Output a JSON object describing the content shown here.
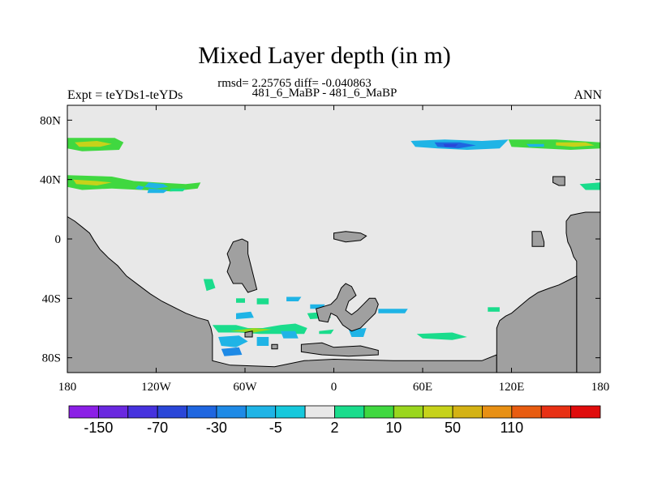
{
  "title": "Mixed Layer depth (in m)",
  "subtitle_stats": "rmsd= 2.25765 diff= -0.040863",
  "subtitle_case": "481_6_MaBP - 481_6_MaBP",
  "left_label": "Expt = teYDs1-teYDs",
  "right_label": "ANN",
  "map": {
    "lon_range": [
      -180,
      180
    ],
    "lat_range": [
      -90,
      90
    ],
    "lon_ticks": [
      {
        "value": -180,
        "label": "180"
      },
      {
        "value": -120,
        "label": "120W"
      },
      {
        "value": -60,
        "label": "60W"
      },
      {
        "value": 0,
        "label": "0"
      },
      {
        "value": 60,
        "label": "60E"
      },
      {
        "value": 120,
        "label": "120E"
      },
      {
        "value": 180,
        "label": "180"
      }
    ],
    "lat_ticks": [
      {
        "value": 80,
        "label": "80N"
      },
      {
        "value": 40,
        "label": "40N"
      },
      {
        "value": 0,
        "label": "0"
      },
      {
        "value": -40,
        "label": "40S"
      },
      {
        "value": -80,
        "label": "80S"
      }
    ],
    "ocean_color": "#e8e8e8",
    "land_color": "#a0a0a0"
  },
  "colorbar": {
    "colors": [
      "#8b1fe6",
      "#6a28e0",
      "#4632de",
      "#2a46d8",
      "#1f66e0",
      "#1e8ae6",
      "#1fb4e6",
      "#16c8dc",
      "#e8e8e8",
      "#1adc8c",
      "#40d840",
      "#9ad61e",
      "#c6d21a",
      "#d4b214",
      "#e89014",
      "#e85c10",
      "#e83014",
      "#e00c0c"
    ],
    "labels": [
      "-150",
      "-70",
      "-30",
      "-5",
      "2",
      "10",
      "50",
      "110"
    ]
  },
  "land": [
    [
      [
        -180,
        -90
      ],
      [
        -180,
        15
      ],
      [
        -175,
        12
      ],
      [
        -170,
        8
      ],
      [
        -165,
        4
      ],
      [
        -162,
        -1
      ],
      [
        -158,
        -7
      ],
      [
        -152,
        -13
      ],
      [
        -146,
        -18
      ],
      [
        -140,
        -25
      ],
      [
        -132,
        -31
      ],
      [
        -124,
        -37
      ],
      [
        -116,
        -42
      ],
      [
        -108,
        -46
      ],
      [
        -100,
        -50
      ],
      [
        -92,
        -53
      ],
      [
        -85,
        -55
      ],
      [
        -83,
        -60
      ],
      [
        -82,
        -65
      ],
      [
        -82,
        -82
      ],
      [
        -70,
        -85
      ],
      [
        -40,
        -86
      ],
      [
        -20,
        -82
      ],
      [
        0,
        -81
      ],
      [
        40,
        -82
      ],
      [
        80,
        -82
      ],
      [
        100,
        -82
      ],
      [
        110,
        -78
      ],
      [
        110,
        -90
      ]
    ],
    [
      [
        -72,
        -10
      ],
      [
        -68,
        -2
      ],
      [
        -62,
        0
      ],
      [
        -58,
        -2
      ],
      [
        -58,
        -10
      ],
      [
        -55,
        -22
      ],
      [
        -52,
        -34
      ],
      [
        -58,
        -36
      ],
      [
        -62,
        -30
      ],
      [
        -68,
        -30
      ],
      [
        -72,
        -22
      ],
      [
        -70,
        -16
      ]
    ],
    [
      [
        5,
        -33
      ],
      [
        8,
        -30
      ],
      [
        12,
        -32
      ],
      [
        15,
        -38
      ],
      [
        10,
        -42
      ],
      [
        8,
        -48
      ],
      [
        12,
        -51
      ],
      [
        16,
        -48
      ],
      [
        20,
        -44
      ],
      [
        24,
        -40
      ],
      [
        28,
        -40
      ],
      [
        30,
        -44
      ],
      [
        28,
        -50
      ],
      [
        22,
        -56
      ],
      [
        18,
        -60
      ],
      [
        12,
        -62
      ],
      [
        6,
        -58
      ],
      [
        2,
        -52
      ],
      [
        -2,
        -50
      ],
      [
        -4,
        -56
      ],
      [
        -10,
        -55
      ],
      [
        -12,
        -47
      ],
      [
        -2,
        -44
      ],
      [
        2,
        -40
      ]
    ],
    [
      [
        -22,
        -71
      ],
      [
        -8,
        -70
      ],
      [
        0,
        -73
      ],
      [
        18,
        -72
      ],
      [
        30,
        -75
      ],
      [
        30,
        -78
      ],
      [
        10,
        -79
      ],
      [
        -8,
        -78
      ],
      [
        -22,
        -76
      ]
    ],
    [
      [
        0,
        4
      ],
      [
        8,
        5
      ],
      [
        18,
        4
      ],
      [
        22,
        2
      ],
      [
        18,
        -1
      ],
      [
        8,
        -2
      ],
      [
        0,
        0
      ]
    ],
    [
      [
        -60,
        -63
      ],
      [
        -55,
        -62
      ],
      [
        -55,
        -66
      ],
      [
        -60,
        -66
      ]
    ],
    [
      [
        -42,
        -71
      ],
      [
        -38,
        -71
      ],
      [
        -38,
        -74
      ],
      [
        -42,
        -74
      ]
    ],
    [
      [
        134,
        5
      ],
      [
        140,
        5
      ],
      [
        142,
        -2
      ],
      [
        142,
        -5
      ],
      [
        134,
        -5
      ]
    ],
    [
      [
        148,
        42
      ],
      [
        156,
        42
      ],
      [
        156,
        36
      ],
      [
        152,
        36
      ],
      [
        148,
        38
      ]
    ],
    [
      [
        164,
        -90
      ],
      [
        164,
        -15
      ],
      [
        162,
        -12
      ],
      [
        160,
        -6
      ],
      [
        158,
        -2
      ],
      [
        157,
        4
      ],
      [
        157,
        12
      ],
      [
        160,
        16
      ],
      [
        165,
        17
      ],
      [
        170,
        18
      ],
      [
        175,
        18
      ],
      [
        180,
        18
      ],
      [
        180,
        -90
      ]
    ],
    [
      [
        110,
        -90
      ],
      [
        110,
        -60
      ],
      [
        112,
        -55
      ],
      [
        116,
        -52
      ],
      [
        120,
        -50
      ],
      [
        126,
        -45
      ],
      [
        132,
        -40
      ],
      [
        138,
        -36
      ],
      [
        146,
        -33
      ],
      [
        152,
        -31
      ],
      [
        160,
        -27
      ],
      [
        164,
        -25
      ],
      [
        164,
        -90
      ]
    ]
  ],
  "patches": [
    {
      "color": "#40d840",
      "points": [
        [
          -180,
          68
        ],
        [
          -148,
          68
        ],
        [
          -142,
          65
        ],
        [
          -145,
          60
        ],
        [
          -170,
          59
        ],
        [
          -180,
          61
        ]
      ]
    },
    {
      "color": "#c6d21a",
      "points": [
        [
          -175,
          65
        ],
        [
          -160,
          66
        ],
        [
          -150,
          64
        ],
        [
          -158,
          62
        ],
        [
          -172,
          62
        ]
      ]
    },
    {
      "color": "#40d840",
      "points": [
        [
          -180,
          43
        ],
        [
          -150,
          42
        ],
        [
          -135,
          39
        ],
        [
          -120,
          38
        ],
        [
          -100,
          37
        ],
        [
          -90,
          38
        ],
        [
          -92,
          34
        ],
        [
          -110,
          32
        ],
        [
          -130,
          33
        ],
        [
          -150,
          34
        ],
        [
          -170,
          33
        ],
        [
          -180,
          35
        ]
      ]
    },
    {
      "color": "#c6d21a",
      "points": [
        [
          -176,
          40
        ],
        [
          -160,
          39
        ],
        [
          -150,
          38
        ],
        [
          -160,
          36
        ],
        [
          -174,
          37
        ]
      ]
    },
    {
      "color": "#1fb4e6",
      "points": [
        [
          -125,
          38
        ],
        [
          -115,
          37
        ],
        [
          -112,
          35
        ],
        [
          -120,
          34
        ],
        [
          -128,
          35
        ]
      ]
    },
    {
      "color": "#1fb4e6",
      "points": [
        [
          -125,
          34
        ],
        [
          -112,
          33
        ],
        [
          -115,
          31
        ],
        [
          -126,
          31
        ]
      ]
    },
    {
      "color": "#1fb4e6",
      "points": [
        [
          -132,
          36
        ],
        [
          -128,
          35
        ],
        [
          -130,
          33
        ],
        [
          -134,
          34
        ]
      ]
    },
    {
      "color": "#1adc8c",
      "points": [
        [
          -110,
          34
        ],
        [
          -100,
          34
        ],
        [
          -102,
          32
        ],
        [
          -111,
          32
        ]
      ]
    },
    {
      "color": "#1fb4e6",
      "points": [
        [
          52,
          66
        ],
        [
          75,
          67
        ],
        [
          100,
          66
        ],
        [
          118,
          67
        ],
        [
          112,
          61
        ],
        [
          90,
          60
        ],
        [
          70,
          61
        ],
        [
          55,
          62
        ]
      ]
    },
    {
      "color": "#1f66e0",
      "points": [
        [
          68,
          65
        ],
        [
          85,
          65
        ],
        [
          96,
          63
        ],
        [
          84,
          61
        ],
        [
          70,
          62
        ]
      ]
    },
    {
      "color": "#2a46d8",
      "points": [
        [
          74,
          64
        ],
        [
          84,
          64
        ],
        [
          82,
          62
        ],
        [
          75,
          62
        ]
      ]
    },
    {
      "color": "#40d840",
      "points": [
        [
          118,
          67
        ],
        [
          150,
          67
        ],
        [
          180,
          65
        ],
        [
          180,
          61
        ],
        [
          160,
          60
        ],
        [
          140,
          61
        ],
        [
          120,
          62
        ]
      ]
    },
    {
      "color": "#c6d21a",
      "points": [
        [
          150,
          65
        ],
        [
          170,
          65
        ],
        [
          176,
          63
        ],
        [
          162,
          62
        ],
        [
          150,
          63
        ]
      ]
    },
    {
      "color": "#1fb4e6",
      "points": [
        [
          130,
          64
        ],
        [
          142,
          64
        ],
        [
          142,
          62
        ],
        [
          132,
          62
        ]
      ]
    },
    {
      "color": "#1adc8c",
      "points": [
        [
          166,
          37
        ],
        [
          180,
          38
        ],
        [
          180,
          33
        ],
        [
          170,
          33
        ]
      ]
    },
    {
      "color": "#1adc8c",
      "points": [
        [
          -88,
          -27
        ],
        [
          -82,
          -27
        ],
        [
          -80,
          -33
        ],
        [
          -86,
          -35
        ]
      ]
    },
    {
      "color": "#1adc8c",
      "points": [
        [
          -52,
          -40
        ],
        [
          -44,
          -40
        ],
        [
          -44,
          -44
        ],
        [
          -52,
          -44
        ]
      ]
    },
    {
      "color": "#1fb4e6",
      "points": [
        [
          -66,
          -50
        ],
        [
          -56,
          -49
        ],
        [
          -54,
          -53
        ],
        [
          -66,
          -54
        ]
      ]
    },
    {
      "color": "#1adc8c",
      "points": [
        [
          -82,
          -58
        ],
        [
          -66,
          -58
        ],
        [
          -58,
          -60
        ],
        [
          -48,
          -60
        ],
        [
          -36,
          -58
        ],
        [
          -26,
          -57
        ],
        [
          -18,
          -60
        ],
        [
          -20,
          -64
        ],
        [
          -34,
          -64
        ],
        [
          -50,
          -64
        ],
        [
          -64,
          -63
        ],
        [
          -78,
          -63
        ]
      ]
    },
    {
      "color": "#9ad61e",
      "points": [
        [
          -70,
          -62
        ],
        [
          -54,
          -60
        ],
        [
          -42,
          -61
        ],
        [
          -54,
          -63
        ]
      ]
    },
    {
      "color": "#1fb4e6",
      "points": [
        [
          -78,
          -66
        ],
        [
          -64,
          -65
        ],
        [
          -58,
          -69
        ],
        [
          -66,
          -73
        ],
        [
          -76,
          -72
        ]
      ]
    },
    {
      "color": "#1e8ae6",
      "points": [
        [
          -76,
          -74
        ],
        [
          -64,
          -73
        ],
        [
          -62,
          -78
        ],
        [
          -74,
          -79
        ]
      ]
    },
    {
      "color": "#1fb4e6",
      "points": [
        [
          -52,
          -66
        ],
        [
          -44,
          -66
        ],
        [
          -44,
          -72
        ],
        [
          -52,
          -72
        ]
      ]
    },
    {
      "color": "#1fb4e6",
      "points": [
        [
          -36,
          -62
        ],
        [
          -26,
          -62
        ],
        [
          -24,
          -67
        ],
        [
          -34,
          -67
        ]
      ]
    },
    {
      "color": "#1adc8c",
      "points": [
        [
          -18,
          -50
        ],
        [
          -4,
          -49
        ],
        [
          -2,
          -53
        ],
        [
          -16,
          -54
        ]
      ]
    },
    {
      "color": "#1fb4e6",
      "points": [
        [
          -16,
          -44
        ],
        [
          -6,
          -44
        ],
        [
          -8,
          -47
        ],
        [
          -16,
          -47
        ]
      ]
    },
    {
      "color": "#1adc8c",
      "points": [
        [
          -10,
          -62
        ],
        [
          0,
          -61
        ],
        [
          -2,
          -64
        ],
        [
          -10,
          -64
        ]
      ]
    },
    {
      "color": "#1fb4e6",
      "points": [
        [
          10,
          -61
        ],
        [
          22,
          -60
        ],
        [
          20,
          -66
        ],
        [
          12,
          -66
        ]
      ]
    },
    {
      "color": "#1fb4e6",
      "points": [
        [
          30,
          -47
        ],
        [
          50,
          -47
        ],
        [
          48,
          -50
        ],
        [
          30,
          -50
        ]
      ]
    },
    {
      "color": "#1adc8c",
      "points": [
        [
          56,
          -64
        ],
        [
          80,
          -63
        ],
        [
          90,
          -66
        ],
        [
          80,
          -68
        ],
        [
          60,
          -67
        ]
      ]
    },
    {
      "color": "#1adc8c",
      "points": [
        [
          104,
          -46
        ],
        [
          112,
          -46
        ],
        [
          112,
          -49
        ],
        [
          104,
          -49
        ]
      ]
    },
    {
      "color": "#1fb4e6",
      "points": [
        [
          114,
          -56
        ],
        [
          126,
          -56
        ],
        [
          124,
          -60
        ],
        [
          114,
          -60
        ]
      ]
    },
    {
      "color": "#1fb4e6",
      "points": [
        [
          -32,
          -39
        ],
        [
          -22,
          -39
        ],
        [
          -24,
          -42
        ],
        [
          -32,
          -42
        ]
      ]
    },
    {
      "color": "#1adc8c",
      "points": [
        [
          -66,
          -40
        ],
        [
          -60,
          -40
        ],
        [
          -60,
          -43
        ],
        [
          -66,
          -43
        ]
      ]
    }
  ]
}
